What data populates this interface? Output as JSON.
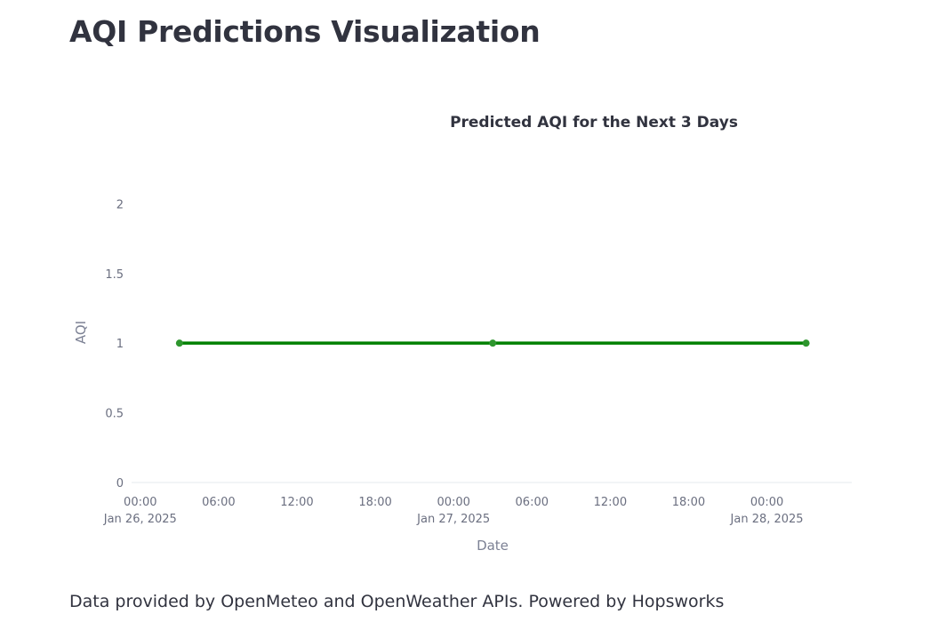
{
  "page": {
    "title": "AQI Predictions Visualization",
    "footer": "Data provided by OpenMeteo and OpenWeather APIs. Powered by Hopsworks"
  },
  "chart_data": {
    "type": "line",
    "title": "Predicted AQI for the Next 3 Days",
    "xlabel": "Date",
    "ylabel": "AQI",
    "x": [
      "2025-01-26 03:00",
      "2025-01-27 03:00",
      "2025-01-28 03:00"
    ],
    "series": [
      {
        "values": [
          1,
          1,
          1
        ],
        "color": "#008000"
      }
    ],
    "ylim": [
      0,
      2.2
    ],
    "yticks": [
      0,
      0.5,
      1,
      1.5,
      2
    ],
    "yticklabels": [
      "0",
      "0.5",
      "1",
      "1.5",
      "2"
    ],
    "xlim": [
      "2025-01-25 23:20",
      "2025-01-28 06:30"
    ],
    "xticks": [
      {
        "x": "2025-01-26 00:00",
        "time": "00:00",
        "date": "Jan 26, 2025"
      },
      {
        "x": "2025-01-26 06:00",
        "time": "06:00",
        "date": ""
      },
      {
        "x": "2025-01-26 12:00",
        "time": "12:00",
        "date": ""
      },
      {
        "x": "2025-01-26 18:00",
        "time": "18:00",
        "date": ""
      },
      {
        "x": "2025-01-27 00:00",
        "time": "00:00",
        "date": "Jan 27, 2025"
      },
      {
        "x": "2025-01-27 06:00",
        "time": "06:00",
        "date": ""
      },
      {
        "x": "2025-01-27 12:00",
        "time": "12:00",
        "date": ""
      },
      {
        "x": "2025-01-27 18:00",
        "time": "18:00",
        "date": ""
      },
      {
        "x": "2025-01-28 00:00",
        "time": "00:00",
        "date": "Jan 28, 2025"
      }
    ],
    "grid": false,
    "line_color": "#008000",
    "axis_line_color": "#e6e8ee"
  }
}
